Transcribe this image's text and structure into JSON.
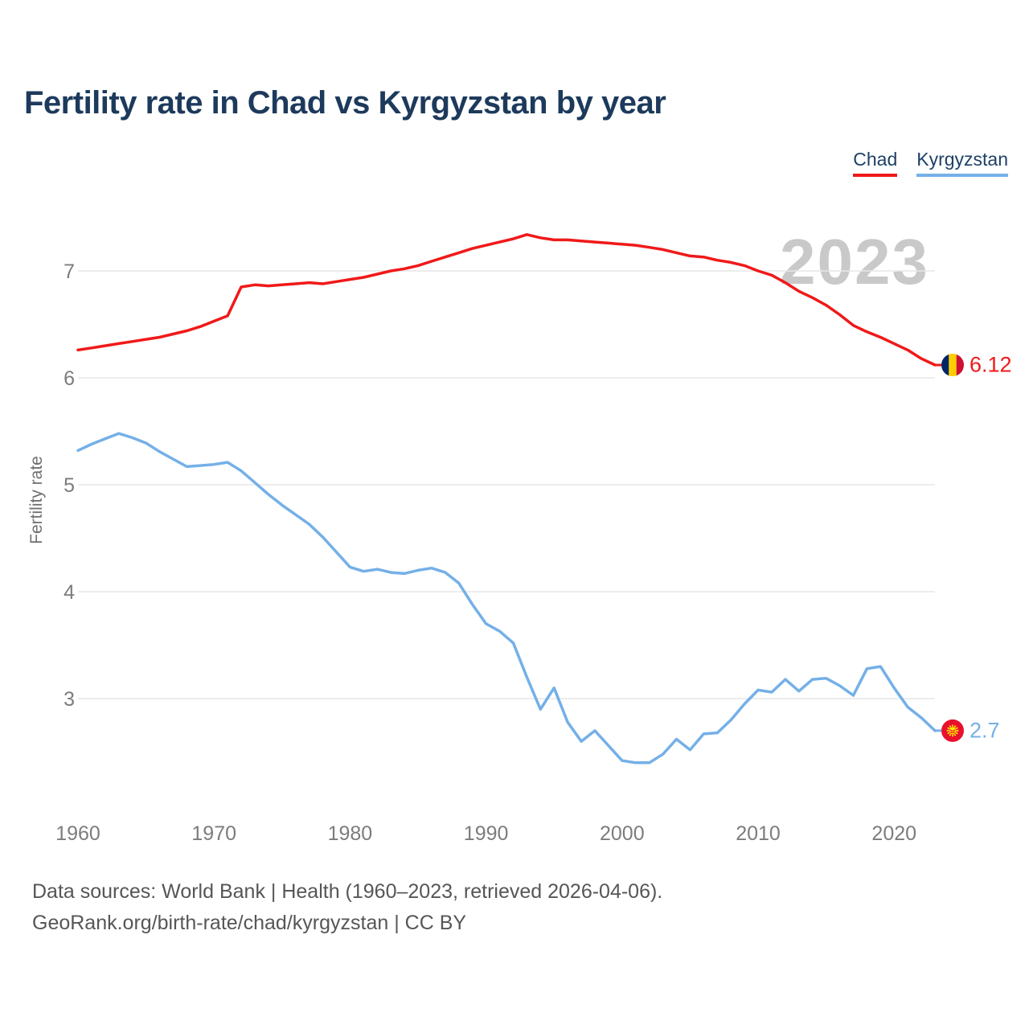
{
  "title": "Fertility rate in Chad vs Kyrgyzstan by year",
  "legend": [
    {
      "label": "Chad",
      "color": "#f01919"
    },
    {
      "label": "Kyrgyzstan",
      "color": "#74b0e8"
    }
  ],
  "watermark": "2023",
  "y_axis_label": "Fertility rate",
  "end_labels": {
    "chad": {
      "value": "6.12",
      "color": "#f01919",
      "flag_icon": "chad-flag"
    },
    "kyrgyzstan": {
      "value": "2.7",
      "color": "#74b0e8",
      "flag_icon": "kyrgyzstan-flag"
    }
  },
  "footer": {
    "line1": "Data sources: World Bank | Health (1960–2023, retrieved 2026-04-06).",
    "line2": "GeoRank.org/birth-rate/chad/kyrgyzstan | CC BY"
  },
  "colors": {
    "title_text": "#1d3a5c",
    "gridline": "#e7e7e7",
    "axis_text": "#7c7c7c",
    "watermark_text": "#c9c9c9",
    "chad_flag": [
      "#002664",
      "#fecd00",
      "#cf0f33"
    ],
    "kyrgyzstan_flag": [
      "#e8112d",
      "#ffe900"
    ]
  },
  "chart_data": {
    "type": "line",
    "title": "Fertility rate in Chad vs Kyrgyzstan by year",
    "xlabel": "",
    "ylabel": "Fertility rate",
    "x_ticks": [
      1960,
      1970,
      1980,
      1990,
      2000,
      2010,
      2020
    ],
    "y_ticks": [
      7,
      6,
      5,
      4,
      3
    ],
    "xlim": [
      1960,
      2023
    ],
    "ylim": [
      2.1,
      7.5
    ],
    "grid": "horizontal",
    "legend_position": "top-right",
    "x": [
      1960,
      1961,
      1962,
      1963,
      1964,
      1965,
      1966,
      1967,
      1968,
      1969,
      1970,
      1971,
      1972,
      1973,
      1974,
      1975,
      1976,
      1977,
      1978,
      1979,
      1980,
      1981,
      1982,
      1983,
      1984,
      1985,
      1986,
      1987,
      1988,
      1989,
      1990,
      1991,
      1992,
      1993,
      1994,
      1995,
      1996,
      1997,
      1998,
      1999,
      2000,
      2001,
      2002,
      2003,
      2004,
      2005,
      2006,
      2007,
      2008,
      2009,
      2010,
      2011,
      2012,
      2013,
      2014,
      2015,
      2016,
      2017,
      2018,
      2019,
      2020,
      2021,
      2022,
      2023
    ],
    "series": [
      {
        "name": "Chad",
        "color": "#f01919",
        "last_label": "6.12",
        "values": [
          6.26,
          6.28,
          6.3,
          6.32,
          6.34,
          6.36,
          6.38,
          6.41,
          6.44,
          6.48,
          6.53,
          6.58,
          6.85,
          6.87,
          6.86,
          6.87,
          6.88,
          6.89,
          6.88,
          6.9,
          6.92,
          6.94,
          6.97,
          7.0,
          7.02,
          7.05,
          7.09,
          7.13,
          7.17,
          7.21,
          7.24,
          7.27,
          7.3,
          7.34,
          7.31,
          7.29,
          7.29,
          7.28,
          7.27,
          7.26,
          7.25,
          7.24,
          7.22,
          7.2,
          7.17,
          7.14,
          7.13,
          7.1,
          7.08,
          7.05,
          7.0,
          6.96,
          6.89,
          6.81,
          6.75,
          6.68,
          6.59,
          6.49,
          6.43,
          6.38,
          6.32,
          6.26,
          6.18,
          6.12
        ]
      },
      {
        "name": "Kyrgyzstan",
        "color": "#74b0e8",
        "last_label": "2.7",
        "values": [
          5.32,
          5.38,
          5.43,
          5.48,
          5.44,
          5.39,
          5.31,
          5.24,
          5.17,
          5.18,
          5.19,
          5.21,
          5.13,
          5.02,
          4.91,
          4.81,
          4.72,
          4.63,
          4.51,
          4.37,
          4.23,
          4.19,
          4.21,
          4.18,
          4.17,
          4.2,
          4.22,
          4.18,
          4.08,
          3.88,
          3.7,
          3.63,
          3.52,
          3.2,
          2.9,
          3.1,
          2.78,
          2.6,
          2.7,
          2.56,
          2.42,
          2.4,
          2.4,
          2.48,
          2.62,
          2.52,
          2.67,
          2.68,
          2.8,
          2.95,
          3.08,
          3.06,
          3.18,
          3.07,
          3.18,
          3.19,
          3.12,
          3.03,
          3.28,
          3.3,
          3.1,
          2.92,
          2.82,
          2.7
        ]
      }
    ]
  }
}
